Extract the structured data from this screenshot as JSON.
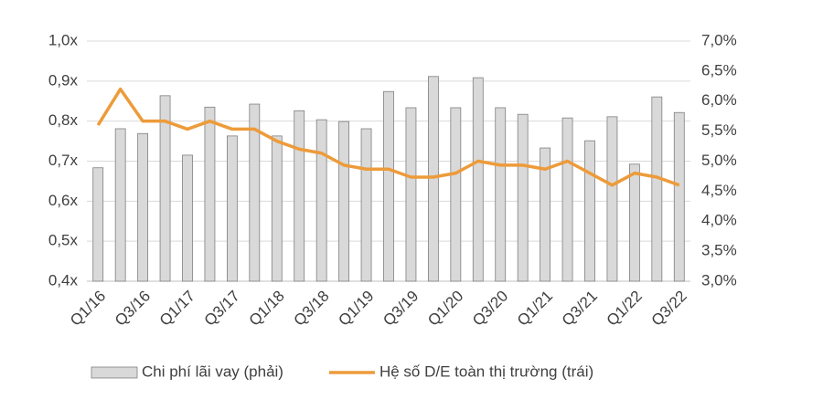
{
  "chart_data": {
    "type": "bar_line",
    "categories": [
      "Q1/16",
      null,
      "Q3/16",
      null,
      "Q1/17",
      null,
      "Q3/17",
      null,
      "Q1/18",
      null,
      "Q3/18",
      null,
      "Q1/19",
      null,
      "Q3/19",
      null,
      "Q1/20",
      null,
      "Q3/20",
      null,
      "Q1/21",
      null,
      "Q3/21",
      null,
      "Q1/22",
      null,
      "Q3/22"
    ],
    "series": [
      {
        "name": "Chi phí lãi vay (phải)",
        "type": "bar",
        "axis": "y2",
        "color": "#d9d9d9",
        "values": [
          4.89,
          5.54,
          5.46,
          6.09,
          5.1,
          5.9,
          5.42,
          5.95,
          5.42,
          5.84,
          5.69,
          5.66,
          5.54,
          6.16,
          5.89,
          6.41,
          5.89,
          6.39,
          5.89,
          5.78,
          5.22,
          5.72,
          5.34,
          5.74,
          4.95,
          6.07,
          5.81
        ]
      },
      {
        "name": "Hệ số D/E toàn thị trường (trái)",
        "type": "line",
        "axis": "y",
        "color": "#ed9b3a",
        "values": [
          0.79,
          0.88,
          0.8,
          0.8,
          0.78,
          0.8,
          0.78,
          0.78,
          0.75,
          0.73,
          0.72,
          0.69,
          0.68,
          0.68,
          0.66,
          0.66,
          0.67,
          0.7,
          0.69,
          0.69,
          0.68,
          0.7,
          0.67,
          0.64,
          0.67,
          0.66,
          0.64
        ]
      }
    ],
    "ylim": [
      0.4,
      1.0
    ],
    "yticks": [
      {
        "value": 0.4,
        "label": "0,4x"
      },
      {
        "value": 0.5,
        "label": "0,5x"
      },
      {
        "value": 0.6,
        "label": "0,6x"
      },
      {
        "value": 0.7,
        "label": "0,7x"
      },
      {
        "value": 0.8,
        "label": "0,8x"
      },
      {
        "value": 0.9,
        "label": "0,9x"
      },
      {
        "value": 1.0,
        "label": "1,0x"
      }
    ],
    "y2lim": [
      3.0,
      7.0
    ],
    "y2ticks": [
      {
        "value": 3.0,
        "label": "3,0%"
      },
      {
        "value": 3.5,
        "label": "3,5%"
      },
      {
        "value": 4.0,
        "label": "4,0%"
      },
      {
        "value": 4.5,
        "label": "4,5%"
      },
      {
        "value": 5.0,
        "label": "5,0%"
      },
      {
        "value": 5.5,
        "label": "5,5%"
      },
      {
        "value": 6.0,
        "label": "6,0%"
      },
      {
        "value": 6.5,
        "label": "6,5%"
      },
      {
        "value": 7.0,
        "label": "7,0%"
      }
    ],
    "grid": true
  }
}
